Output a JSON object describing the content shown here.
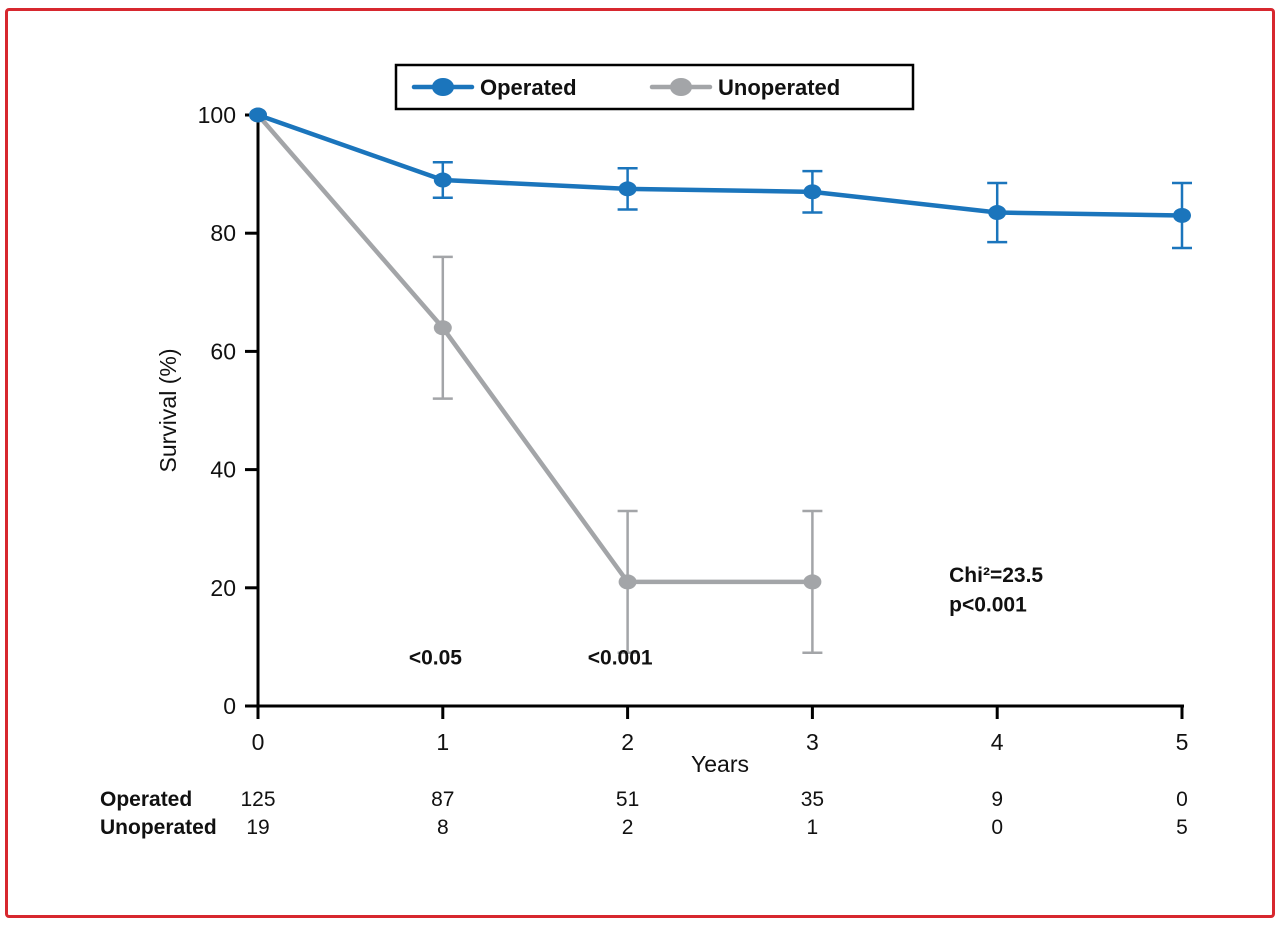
{
  "frame": {
    "border_color": "#d7282f",
    "background": "#ffffff"
  },
  "chart_data": {
    "type": "line",
    "title": "",
    "xlabel": "Years",
    "ylabel": "Survival (%)",
    "xlim": [
      0,
      5
    ],
    "ylim": [
      0,
      100
    ],
    "x_ticks": [
      0,
      1,
      2,
      3,
      4,
      5
    ],
    "y_ticks": [
      0,
      20,
      40,
      60,
      80,
      100
    ],
    "grid": false,
    "legend_position": "top-center",
    "series": [
      {
        "name": "Operated",
        "color": "#1b75bc",
        "x": [
          0,
          1,
          2,
          3,
          4,
          5
        ],
        "y": [
          100,
          89,
          87.5,
          87,
          83.5,
          83
        ],
        "err": [
          0,
          3,
          3.5,
          3.5,
          5,
          5.5
        ]
      },
      {
        "name": "Unoperated",
        "color": "#a3a5a8",
        "x": [
          0,
          1,
          2,
          3
        ],
        "y": [
          100,
          64,
          21,
          21
        ],
        "err": [
          0,
          12,
          12,
          12
        ]
      }
    ],
    "annotations": [
      {
        "text": "<0.05",
        "x": 0.96,
        "y": 7,
        "anchor": "middle"
      },
      {
        "text": "<0.001",
        "x": 1.96,
        "y": 7,
        "anchor": "middle"
      },
      {
        "text": "Chi²=23.5",
        "x": 3.74,
        "y": 21,
        "anchor": "start"
      },
      {
        "text": "p<0.001",
        "x": 3.74,
        "y": 16,
        "anchor": "start"
      }
    ]
  },
  "risk_table": {
    "rows": [
      {
        "label": "Operated",
        "values": [
          "125",
          "87",
          "51",
          "35",
          "9",
          "0"
        ]
      },
      {
        "label": "Unoperated",
        "values": [
          "19",
          "8",
          "2",
          "1",
          "0",
          "5"
        ]
      }
    ]
  }
}
